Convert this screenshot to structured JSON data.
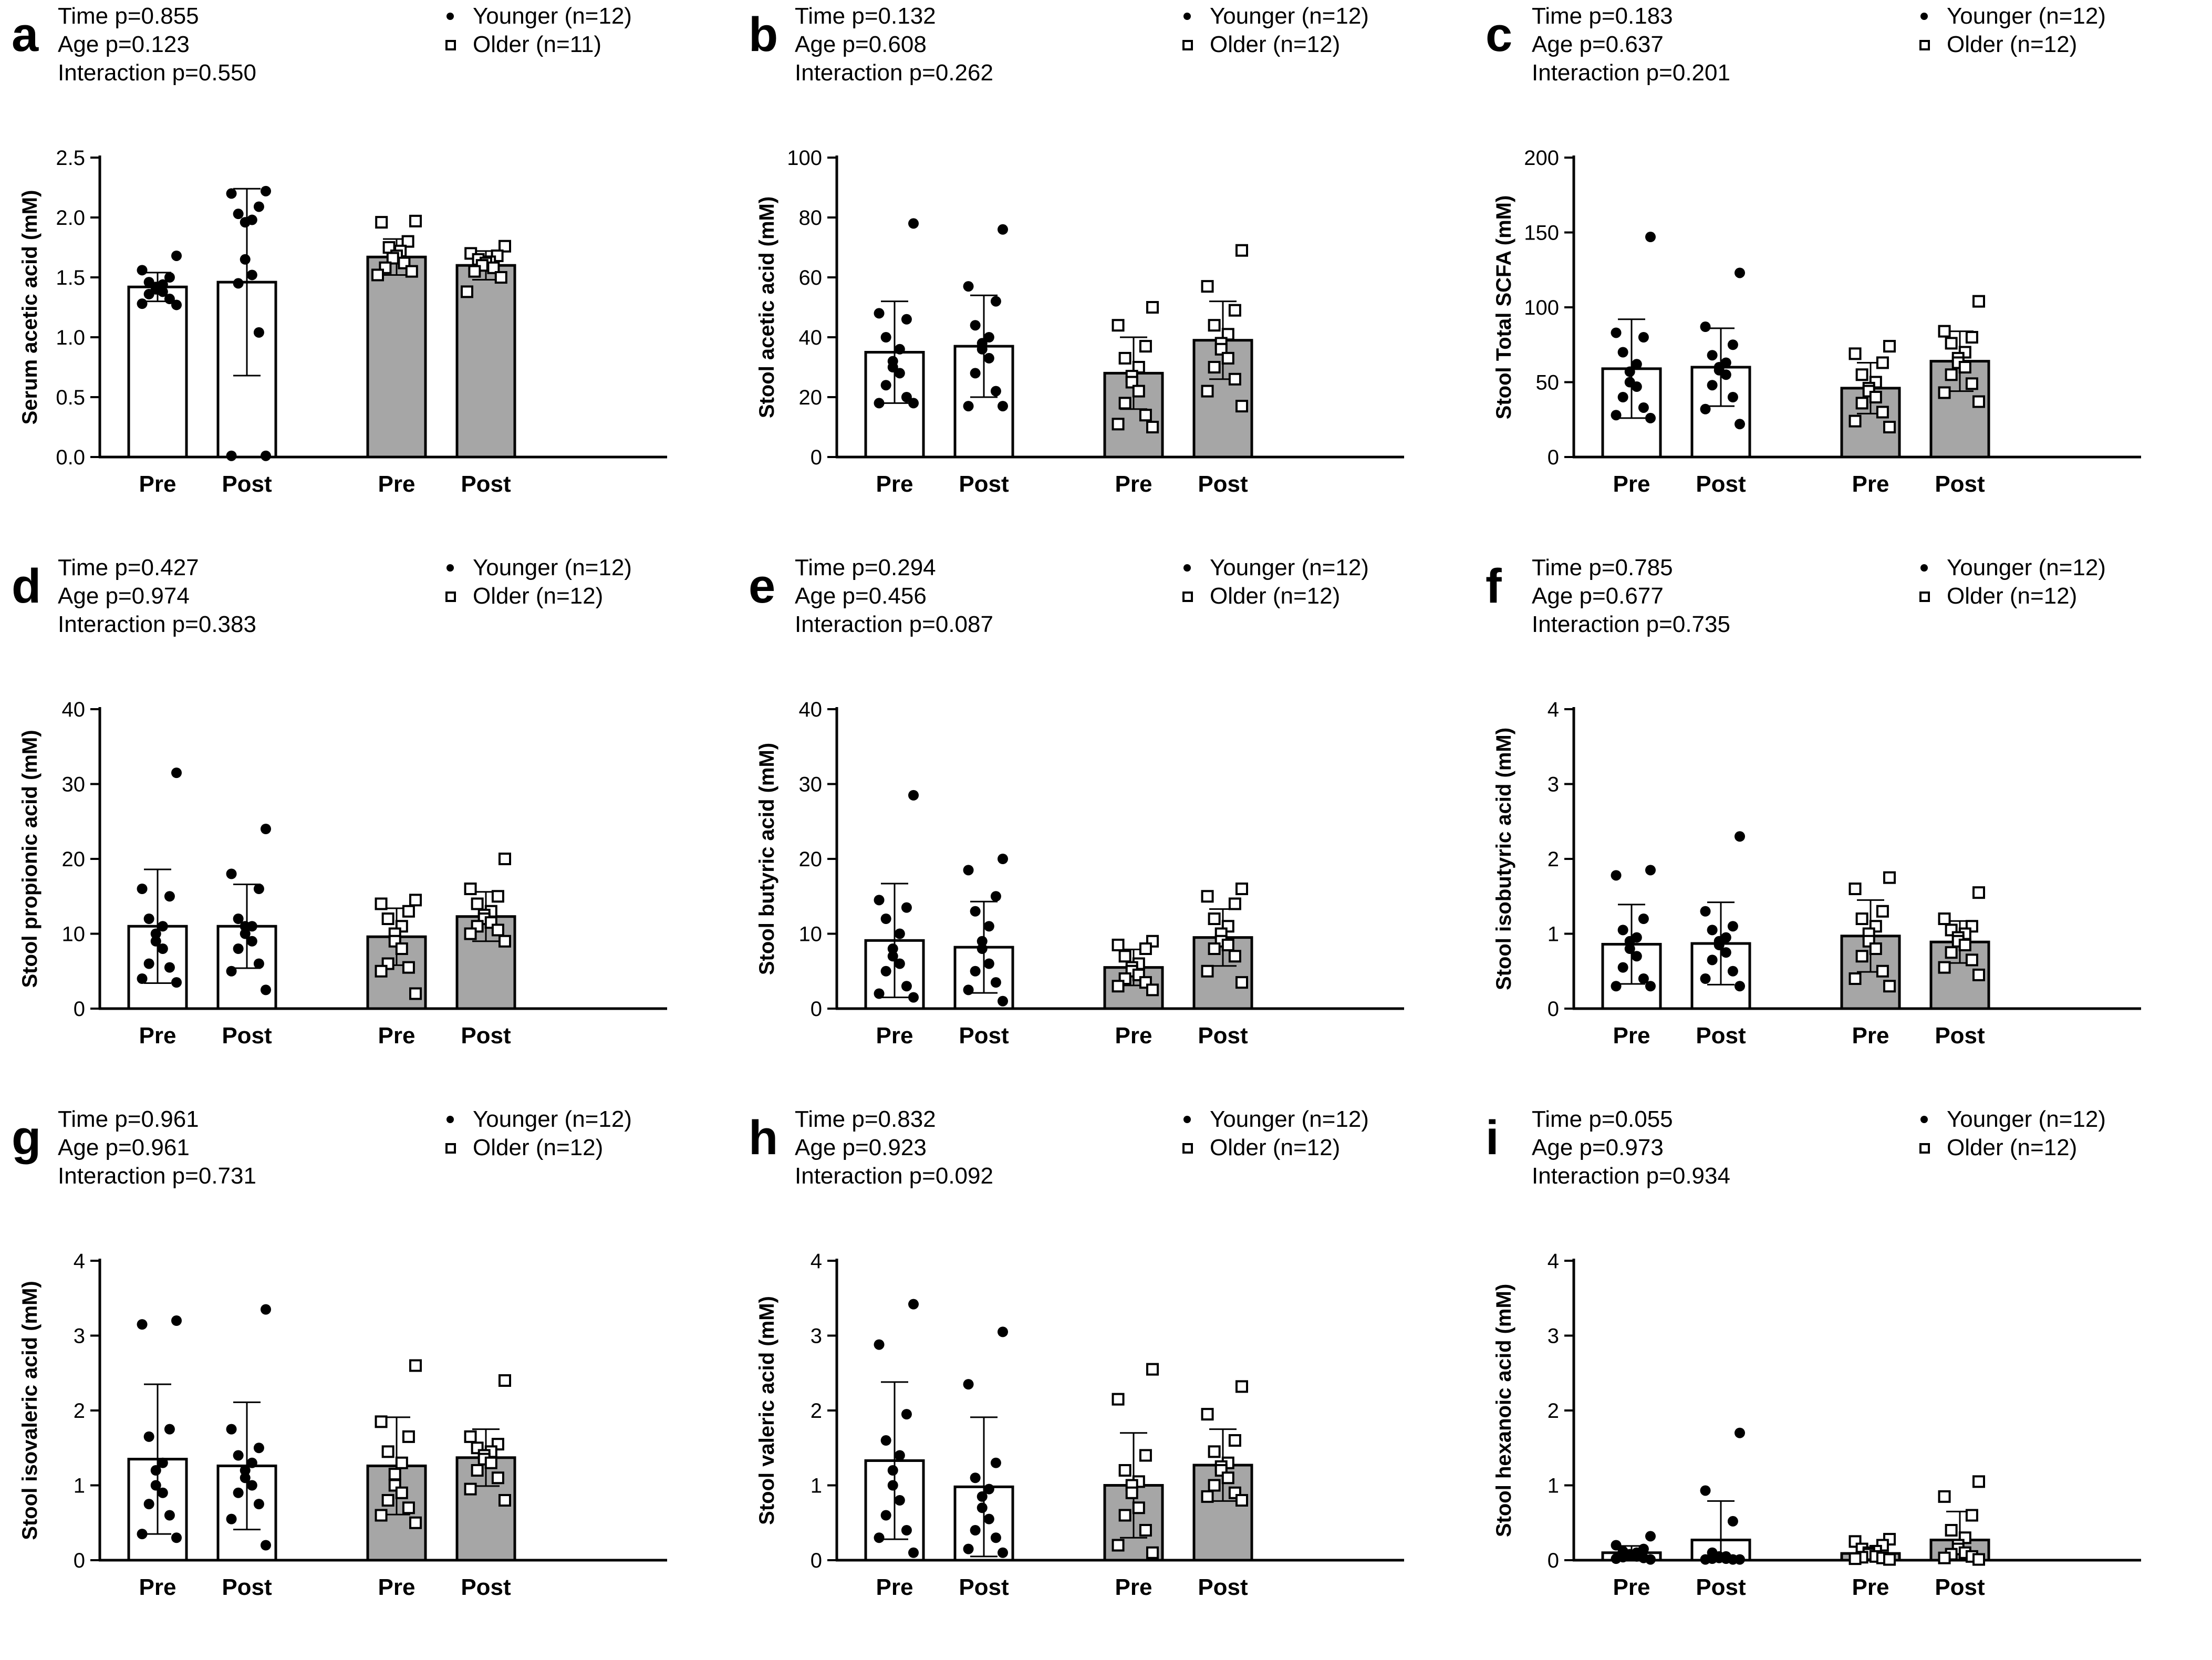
{
  "figure": {
    "legend_symbols": {
      "younger": "filled-circle",
      "older": "open-square"
    },
    "colors": {
      "younger_bar": "#ffffff",
      "older_bar": "#a6a6a6",
      "ink": "#000000"
    }
  },
  "chart_data": [
    {
      "letter": "a",
      "type": "bar",
      "stats": [
        "Time p=0.855",
        "Age p=0.123",
        "Interaction p=0.550"
      ],
      "legend": [
        "Younger (n=12)",
        "Older (n=11)"
      ],
      "ylabel": "Serum acetic acid (mM)",
      "ylim": [
        0,
        2.5
      ],
      "yticks": [
        0.0,
        0.5,
        1.0,
        1.5,
        2.0,
        2.5
      ],
      "tick_decimals": 1,
      "categories": [
        "Pre",
        "Post",
        "Pre",
        "Post"
      ],
      "groups": [
        "Younger",
        "Younger",
        "Older",
        "Older"
      ],
      "means": [
        1.42,
        1.46,
        1.67,
        1.6
      ],
      "sd": [
        0.12,
        0.78,
        0.15,
        0.12
      ],
      "points": [
        [
          1.68,
          1.56,
          1.5,
          1.46,
          1.44,
          1.42,
          1.4,
          1.38,
          1.36,
          1.32,
          1.28,
          1.27
        ],
        [
          2.22,
          2.2,
          2.09,
          2.03,
          1.98,
          1.96,
          1.65,
          1.52,
          1.45,
          1.04,
          0.01,
          0.01
        ],
        [
          1.97,
          1.96,
          1.8,
          1.75,
          1.72,
          1.68,
          1.66,
          1.62,
          1.58,
          1.55,
          1.52
        ],
        [
          1.76,
          1.7,
          1.68,
          1.65,
          1.63,
          1.62,
          1.6,
          1.58,
          1.55,
          1.5,
          1.38
        ]
      ]
    },
    {
      "letter": "b",
      "type": "bar",
      "stats": [
        "Time p=0.132",
        "Age p=0.608",
        "Interaction p=0.262"
      ],
      "legend": [
        "Younger (n=12)",
        "Older (n=12)"
      ],
      "ylabel": "Stool acetic acid (mM)",
      "ylim": [
        0,
        100
      ],
      "yticks": [
        0,
        20,
        40,
        60,
        80,
        100
      ],
      "tick_decimals": 0,
      "categories": [
        "Pre",
        "Post",
        "Pre",
        "Post"
      ],
      "groups": [
        "Younger",
        "Younger",
        "Older",
        "Older"
      ],
      "means": [
        35,
        37,
        28,
        39
      ],
      "sd": [
        17,
        17,
        12,
        13
      ],
      "points": [
        [
          78,
          48,
          46,
          40,
          36,
          32,
          30,
          28,
          24,
          20,
          18,
          18
        ],
        [
          76,
          57,
          52,
          44,
          40,
          38,
          36,
          33,
          28,
          22,
          17,
          17
        ],
        [
          50,
          44,
          37,
          33,
          30,
          27,
          25,
          22,
          18,
          14,
          11,
          10
        ],
        [
          69,
          57,
          49,
          44,
          41,
          38,
          36,
          33,
          30,
          26,
          22,
          17
        ]
      ]
    },
    {
      "letter": "c",
      "type": "bar",
      "stats": [
        "Time p=0.183",
        "Age p=0.637",
        "Interaction p=0.201"
      ],
      "legend": [
        "Younger (n=12)",
        "Older (n=12)"
      ],
      "ylabel": "Stool Total SCFA (mM)",
      "ylim": [
        0,
        200
      ],
      "yticks": [
        0,
        50,
        100,
        150,
        200
      ],
      "tick_decimals": 0,
      "categories": [
        "Pre",
        "Post",
        "Pre",
        "Post"
      ],
      "groups": [
        "Younger",
        "Younger",
        "Older",
        "Older"
      ],
      "means": [
        59,
        60,
        46,
        64
      ],
      "sd": [
        33,
        26,
        17,
        20
      ],
      "points": [
        [
          147,
          83,
          80,
          70,
          62,
          57,
          50,
          47,
          40,
          33,
          28,
          26
        ],
        [
          123,
          87,
          75,
          68,
          63,
          60,
          58,
          55,
          48,
          40,
          32,
          22
        ],
        [
          74,
          69,
          63,
          55,
          50,
          46,
          44,
          40,
          36,
          30,
          24,
          20
        ],
        [
          104,
          84,
          80,
          76,
          70,
          66,
          63,
          60,
          55,
          49,
          43,
          37
        ]
      ]
    },
    {
      "letter": "d",
      "type": "bar",
      "stats": [
        "Time p=0.427",
        "Age p=0.974",
        "Interaction p=0.383"
      ],
      "legend": [
        "Younger (n=12)",
        "Older (n=12)"
      ],
      "ylabel": "Stool propionic acid (mM)",
      "ylim": [
        0,
        40
      ],
      "yticks": [
        0,
        10,
        20,
        30,
        40
      ],
      "tick_decimals": 0,
      "categories": [
        "Pre",
        "Post",
        "Pre",
        "Post"
      ],
      "groups": [
        "Younger",
        "Younger",
        "Older",
        "Older"
      ],
      "means": [
        11,
        11,
        9.6,
        12.3
      ],
      "sd": [
        7.6,
        5.6,
        3.8,
        3.3
      ],
      "points": [
        [
          31.5,
          16,
          15,
          12,
          11,
          10,
          9,
          8,
          6,
          5.5,
          4,
          3.5
        ],
        [
          24,
          18,
          16,
          12,
          11,
          11,
          10,
          9,
          8,
          6,
          5,
          2.5
        ],
        [
          14.5,
          14,
          13,
          12,
          11,
          10,
          9,
          8,
          6,
          5.5,
          5,
          2
        ],
        [
          20,
          16,
          15,
          14,
          13,
          12.5,
          12,
          11.5,
          11,
          10.5,
          10,
          9
        ]
      ]
    },
    {
      "letter": "e",
      "type": "bar",
      "stats": [
        "Time p=0.294",
        "Age p=0.456",
        "Interaction p=0.087"
      ],
      "legend": [
        "Younger (n=12)",
        "Older (n=12)"
      ],
      "ylabel": "Stool butyric acid (mM)",
      "ylim": [
        0,
        40
      ],
      "yticks": [
        0,
        10,
        20,
        30,
        40
      ],
      "tick_decimals": 0,
      "categories": [
        "Pre",
        "Post",
        "Pre",
        "Post"
      ],
      "groups": [
        "Younger",
        "Younger",
        "Older",
        "Older"
      ],
      "means": [
        9.1,
        8.2,
        5.5,
        9.5
      ],
      "sd": [
        7.6,
        6.1,
        2.4,
        3.8
      ],
      "points": [
        [
          28.5,
          14.5,
          13.5,
          12,
          10,
          8,
          7,
          6,
          5,
          3,
          2,
          1.5
        ],
        [
          20,
          18.5,
          15,
          13,
          11,
          9,
          8,
          6,
          5,
          3.5,
          2.5,
          1
        ],
        [
          9,
          8.5,
          8,
          7,
          6,
          5.5,
          5,
          4.5,
          4,
          3.5,
          3,
          2.5
        ],
        [
          16,
          15,
          14,
          12,
          11,
          10,
          9,
          8.5,
          8,
          7,
          5,
          3.5
        ]
      ]
    },
    {
      "letter": "f",
      "type": "bar",
      "stats": [
        "Time p=0.785",
        "Age p=0.677",
        "Interaction p=0.735"
      ],
      "legend": [
        "Younger (n=12)",
        "Older (n=12)"
      ],
      "ylabel": "Stool isobutyric acid (mM)",
      "ylim": [
        0,
        4
      ],
      "yticks": [
        0,
        1,
        2,
        3,
        4
      ],
      "tick_decimals": 0,
      "categories": [
        "Pre",
        "Post",
        "Pre",
        "Post"
      ],
      "groups": [
        "Younger",
        "Younger",
        "Older",
        "Older"
      ],
      "means": [
        0.86,
        0.87,
        0.97,
        0.89
      ],
      "sd": [
        0.53,
        0.55,
        0.48,
        0.28
      ],
      "points": [
        [
          1.85,
          1.78,
          1.2,
          1.05,
          0.95,
          0.9,
          0.8,
          0.7,
          0.55,
          0.4,
          0.3,
          0.3
        ],
        [
          2.3,
          1.3,
          1.1,
          1.05,
          0.95,
          0.9,
          0.85,
          0.75,
          0.65,
          0.5,
          0.4,
          0.3
        ],
        [
          1.75,
          1.6,
          1.3,
          1.2,
          1.1,
          1.0,
          0.9,
          0.8,
          0.7,
          0.5,
          0.4,
          0.3
        ],
        [
          1.55,
          1.2,
          1.1,
          1.05,
          1.0,
          0.95,
          0.9,
          0.85,
          0.75,
          0.65,
          0.55,
          0.45
        ]
      ]
    },
    {
      "letter": "g",
      "type": "bar",
      "stats": [
        "Time p=0.961",
        "Age p=0.961",
        "Interaction p=0.731"
      ],
      "legend": [
        "Younger (n=12)",
        "Older (n=12)"
      ],
      "ylabel": "Stool isovaleric acid (mM)",
      "ylim": [
        0,
        4
      ],
      "yticks": [
        0,
        1,
        2,
        3,
        4
      ],
      "tick_decimals": 0,
      "categories": [
        "Pre",
        "Post",
        "Pre",
        "Post"
      ],
      "groups": [
        "Younger",
        "Younger",
        "Older",
        "Older"
      ],
      "means": [
        1.35,
        1.26,
        1.26,
        1.37
      ],
      "sd": [
        1.0,
        0.85,
        0.65,
        0.38
      ],
      "points": [
        [
          3.2,
          3.15,
          1.75,
          1.65,
          1.3,
          1.2,
          1.0,
          0.9,
          0.75,
          0.6,
          0.35,
          0.3
        ],
        [
          3.35,
          1.75,
          1.5,
          1.4,
          1.3,
          1.2,
          1.1,
          1.0,
          0.9,
          0.75,
          0.55,
          0.2
        ],
        [
          2.6,
          1.85,
          1.65,
          1.45,
          1.3,
          1.15,
          1.0,
          0.9,
          0.8,
          0.7,
          0.6,
          0.5
        ],
        [
          2.4,
          1.65,
          1.55,
          1.5,
          1.45,
          1.4,
          1.35,
          1.3,
          1.2,
          1.1,
          0.95,
          0.8
        ]
      ]
    },
    {
      "letter": "h",
      "type": "bar",
      "stats": [
        "Time p=0.832",
        "Age p=0.923",
        "Interaction p=0.092"
      ],
      "legend": [
        "Younger (n=12)",
        "Older (n=12)"
      ],
      "ylabel": "Stool valeric acid (mM)",
      "ylim": [
        0,
        4
      ],
      "yticks": [
        0,
        1,
        2,
        3,
        4
      ],
      "tick_decimals": 0,
      "categories": [
        "Pre",
        "Post",
        "Pre",
        "Post"
      ],
      "groups": [
        "Younger",
        "Younger",
        "Older",
        "Older"
      ],
      "means": [
        1.33,
        0.98,
        1.0,
        1.27
      ],
      "sd": [
        1.05,
        0.93,
        0.7,
        0.48
      ],
      "points": [
        [
          3.42,
          2.88,
          1.95,
          1.6,
          1.4,
          1.2,
          1.0,
          0.8,
          0.6,
          0.4,
          0.3,
          0.1
        ],
        [
          3.05,
          2.35,
          1.3,
          1.1,
          0.95,
          0.85,
          0.7,
          0.55,
          0.4,
          0.3,
          0.15,
          0.1
        ],
        [
          2.55,
          2.15,
          1.4,
          1.2,
          1.05,
          1.0,
          0.9,
          0.7,
          0.6,
          0.4,
          0.2,
          0.1
        ],
        [
          2.32,
          1.95,
          1.6,
          1.45,
          1.3,
          1.25,
          1.2,
          1.1,
          1.0,
          0.9,
          0.85,
          0.8
        ]
      ]
    },
    {
      "letter": "i",
      "type": "bar",
      "stats": [
        "Time p=0.055",
        "Age p=0.973",
        "Interaction p=0.934"
      ],
      "legend": [
        "Younger (n=12)",
        "Older (n=12)"
      ],
      "ylabel": "Stool hexanoic acid (mM)",
      "ylim": [
        0,
        4
      ],
      "yticks": [
        0,
        1,
        2,
        3,
        4
      ],
      "tick_decimals": 0,
      "categories": [
        "Pre",
        "Post",
        "Pre",
        "Post"
      ],
      "groups": [
        "Younger",
        "Younger",
        "Older",
        "Older"
      ],
      "means": [
        0.1,
        0.27,
        0.09,
        0.27
      ],
      "sd": [
        0.09,
        0.52,
        0.08,
        0.38
      ],
      "points": [
        [
          0.32,
          0.2,
          0.15,
          0.12,
          0.1,
          0.08,
          0.06,
          0.05,
          0.04,
          0.03,
          0.02,
          0.01
        ],
        [
          1.7,
          0.93,
          0.52,
          0.1,
          0.05,
          0.05,
          0.03,
          0.02,
          0.02,
          0.01,
          0.01,
          0.01
        ],
        [
          0.28,
          0.25,
          0.2,
          0.15,
          0.12,
          0.1,
          0.08,
          0.05,
          0.04,
          0.03,
          0.02,
          0.01
        ],
        [
          1.05,
          0.85,
          0.6,
          0.4,
          0.3,
          0.2,
          0.15,
          0.1,
          0.08,
          0.05,
          0.03,
          0.01
        ]
      ]
    }
  ]
}
